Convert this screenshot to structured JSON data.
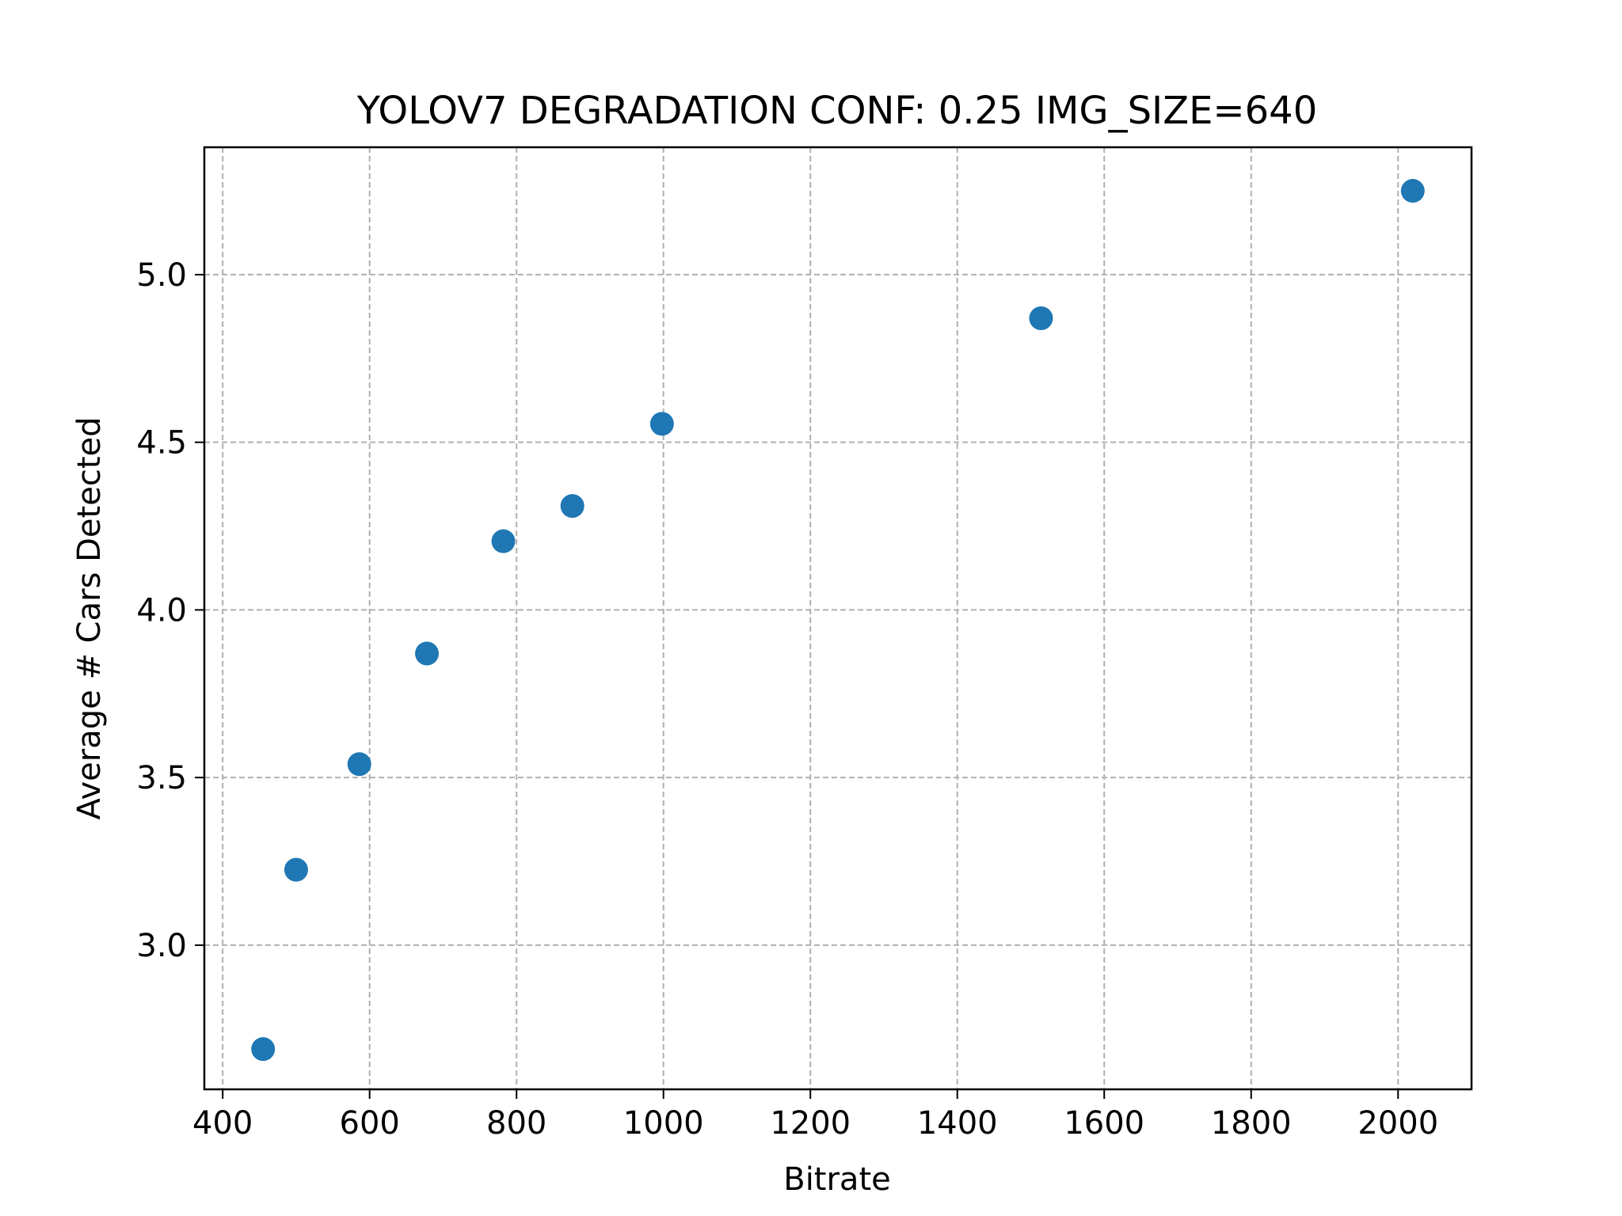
{
  "chart_data": {
    "type": "scatter",
    "title": "YOLOV7 DEGRADATION CONF: 0.25 IMG_SIZE=640",
    "xlabel": "Bitrate",
    "ylabel": "Average # Cars Detected",
    "xlim": [
      375,
      2100
    ],
    "ylim": [
      2.57,
      5.38
    ],
    "x_ticks": [
      400,
      600,
      800,
      1000,
      1200,
      1400,
      1600,
      1800,
      2000
    ],
    "y_ticks": [
      3.0,
      3.5,
      4.0,
      4.5,
      5.0
    ],
    "grid": true,
    "legend": "none",
    "color": "#1f77b4",
    "points": [
      {
        "x": 455,
        "y": 2.69
      },
      {
        "x": 500,
        "y": 3.225
      },
      {
        "x": 586,
        "y": 3.54
      },
      {
        "x": 678,
        "y": 3.87
      },
      {
        "x": 782,
        "y": 4.205
      },
      {
        "x": 876,
        "y": 4.31
      },
      {
        "x": 998,
        "y": 4.555
      },
      {
        "x": 1514,
        "y": 4.87
      },
      {
        "x": 2020,
        "y": 5.25
      }
    ]
  }
}
